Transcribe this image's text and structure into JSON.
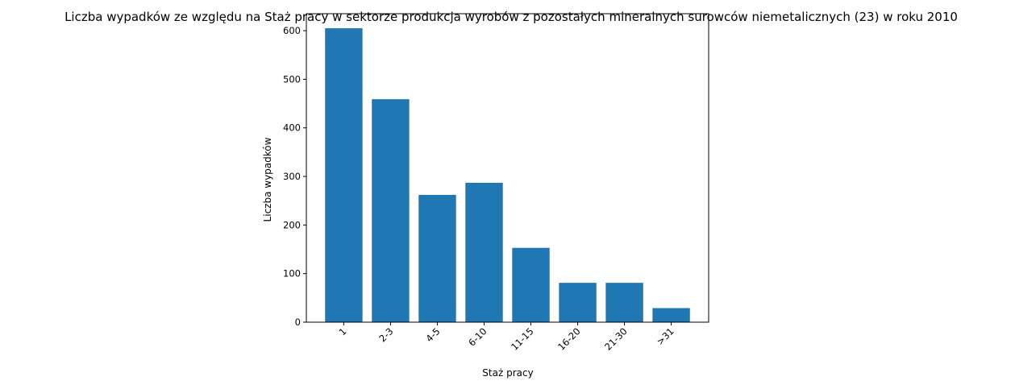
{
  "chart_data": {
    "type": "bar",
    "title": "Liczba wypadków ze względu na Staż pracy w sektorze produkcja wyrobów z pozostałych mineralnych surowców niemetalicznych (23)  w roku 2010",
    "xlabel": "Staż pracy",
    "ylabel": "Liczba wypadków",
    "categories": [
      "1",
      "2-3",
      "4-5",
      "6-10",
      "11-15",
      "16-20",
      "21-30",
      ">31"
    ],
    "values": [
      605,
      459,
      262,
      287,
      153,
      81,
      81,
      29
    ],
    "ylim": [
      0,
      635
    ],
    "yticks": [
      0,
      100,
      200,
      300,
      400,
      500,
      600
    ],
    "bar_color": "#1f77b4",
    "grid": false,
    "legend": "none"
  }
}
